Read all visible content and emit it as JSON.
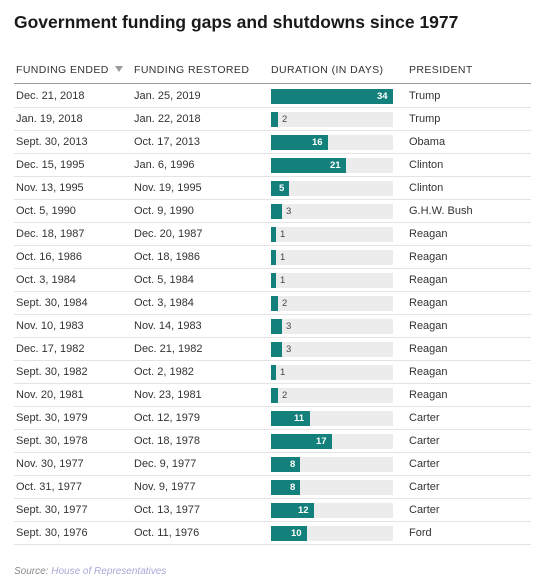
{
  "title": "Government funding gaps and shutdowns since 1977",
  "headers": {
    "funding_ended": "FUNDING ENDED",
    "funding_restored": "FUNDING RESTORED",
    "duration": "DURATION (IN DAYS)",
    "president": "PRESIDENT"
  },
  "source": {
    "prefix": "Source:",
    "name": "House of Representatives"
  },
  "colors": {
    "bar": "#13807b",
    "track": "#ececec",
    "link": "#a6a8d8"
  },
  "chart_data": {
    "type": "table",
    "columns": [
      "FUNDING ENDED",
      "FUNDING RESTORED",
      "DURATION (IN DAYS)",
      "PRESIDENT"
    ],
    "duration_max": 34,
    "rows": [
      {
        "ended": "Dec. 21, 2018",
        "restored": "Jan. 25, 2019",
        "days": 34,
        "president": "Trump"
      },
      {
        "ended": "Jan. 19, 2018",
        "restored": "Jan. 22, 2018",
        "days": 2,
        "president": "Trump"
      },
      {
        "ended": "Sept. 30, 2013",
        "restored": "Oct. 17, 2013",
        "days": 16,
        "president": "Obama"
      },
      {
        "ended": "Dec. 15, 1995",
        "restored": "Jan. 6, 1996",
        "days": 21,
        "president": "Clinton"
      },
      {
        "ended": "Nov. 13, 1995",
        "restored": "Nov. 19, 1995",
        "days": 5,
        "president": "Clinton"
      },
      {
        "ended": "Oct. 5, 1990",
        "restored": "Oct. 9, 1990",
        "days": 3,
        "president": "G.H.W. Bush"
      },
      {
        "ended": "Dec. 18, 1987",
        "restored": "Dec. 20, 1987",
        "days": 1,
        "president": "Reagan"
      },
      {
        "ended": "Oct. 16, 1986",
        "restored": "Oct. 18, 1986",
        "days": 1,
        "president": "Reagan"
      },
      {
        "ended": "Oct. 3, 1984",
        "restored": "Oct. 5, 1984",
        "days": 1,
        "president": "Reagan"
      },
      {
        "ended": "Sept. 30, 1984",
        "restored": "Oct. 3, 1984",
        "days": 2,
        "president": "Reagan"
      },
      {
        "ended": "Nov. 10, 1983",
        "restored": "Nov. 14, 1983",
        "days": 3,
        "president": "Reagan"
      },
      {
        "ended": "Dec. 17, 1982",
        "restored": "Dec. 21, 1982",
        "days": 3,
        "president": "Reagan"
      },
      {
        "ended": "Sept. 30, 1982",
        "restored": "Oct. 2, 1982",
        "days": 1,
        "president": "Reagan"
      },
      {
        "ended": "Nov. 20, 1981",
        "restored": "Nov. 23, 1981",
        "days": 2,
        "president": "Reagan"
      },
      {
        "ended": "Sept. 30, 1979",
        "restored": "Oct. 12, 1979",
        "days": 11,
        "president": "Carter"
      },
      {
        "ended": "Sept. 30, 1978",
        "restored": "Oct. 18, 1978",
        "days": 17,
        "president": "Carter"
      },
      {
        "ended": "Nov. 30, 1977",
        "restored": "Dec. 9, 1977",
        "days": 8,
        "president": "Carter"
      },
      {
        "ended": "Oct. 31, 1977",
        "restored": "Nov. 9, 1977",
        "days": 8,
        "president": "Carter"
      },
      {
        "ended": "Sept. 30, 1977",
        "restored": "Oct. 13, 1977",
        "days": 12,
        "president": "Carter"
      },
      {
        "ended": "Sept. 30, 1976",
        "restored": "Oct. 11, 1976",
        "days": 10,
        "president": "Ford"
      }
    ]
  }
}
